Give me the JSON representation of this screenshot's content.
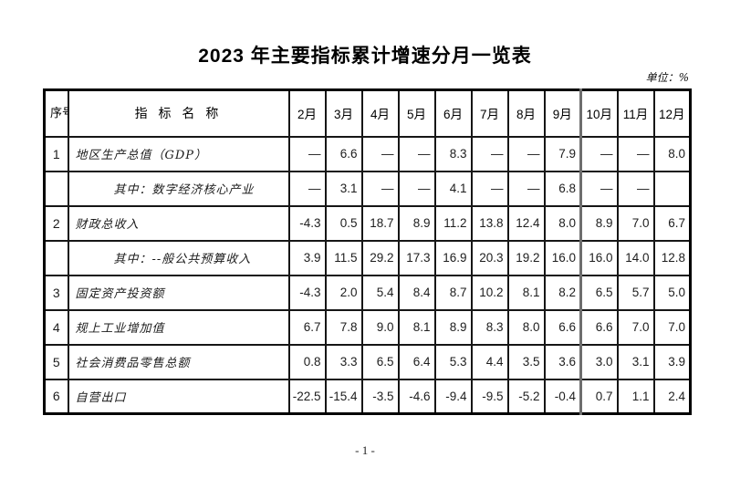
{
  "page": {
    "title": "2023 年主要指标累计增速分月一览表",
    "unit_label": "单位：%",
    "page_number": "- 1 -"
  },
  "colors": {
    "grid": "#161616",
    "outer_border": "#000000",
    "section_divider": "#6e6e6e"
  },
  "table": {
    "header": {
      "seq": "序号",
      "indicator": "指 标 名 称",
      "months": [
        "2月",
        "3月",
        "4月",
        "5月",
        "6月",
        "7月",
        "8月",
        "9月",
        "10月",
        "11月",
        "12月"
      ]
    },
    "rows": [
      {
        "seq": "1",
        "name": "地区生产总值（GDP）",
        "indent": false,
        "values": [
          "—",
          "6.6",
          "—",
          "—",
          "8.3",
          "—",
          "—",
          "7.9",
          "—",
          "—",
          "8.0"
        ]
      },
      {
        "seq": "",
        "name": "其中：数字经济核心产业",
        "indent": true,
        "values": [
          "—",
          "3.1",
          "—",
          "—",
          "4.1",
          "—",
          "—",
          "6.8",
          "—",
          "—",
          ""
        ]
      },
      {
        "seq": "2",
        "name": "财政总收入",
        "indent": false,
        "values": [
          "-4.3",
          "0.5",
          "18.7",
          "8.9",
          "11.2",
          "13.8",
          "12.4",
          "8.0",
          "8.9",
          "7.0",
          "6.7"
        ]
      },
      {
        "seq": "",
        "name": "其中：--般公共预算收入",
        "indent": true,
        "values": [
          "3.9",
          "11.5",
          "29.2",
          "17.3",
          "16.9",
          "20.3",
          "19.2",
          "16.0",
          "16.0",
          "14.0",
          "12.8"
        ]
      },
      {
        "seq": "3",
        "name": "固定资产投资额",
        "indent": false,
        "values": [
          "-4.3",
          "2.0",
          "5.4",
          "8.4",
          "8.7",
          "10.2",
          "8.1",
          "8.2",
          "6.5",
          "5.7",
          "5.0"
        ]
      },
      {
        "seq": "4",
        "name": "规上工业增加值",
        "indent": false,
        "values": [
          "6.7",
          "7.8",
          "9.0",
          "8.1",
          "8.9",
          "8.3",
          "8.0",
          "6.6",
          "6.6",
          "7.0",
          "7.0"
        ]
      },
      {
        "seq": "5",
        "name": "社会消费品零售总额",
        "indent": false,
        "values": [
          "0.8",
          "3.3",
          "6.5",
          "6.4",
          "5.3",
          "4.4",
          "3.5",
          "3.6",
          "3.0",
          "3.1",
          "3.9"
        ]
      },
      {
        "seq": "6",
        "name": "自营出口",
        "indent": false,
        "values": [
          "-22.5",
          "-15.4",
          "-3.5",
          "-4.6",
          "-9.4",
          "-9.5",
          "-5.2",
          "-0.4",
          "0.7",
          "1.1",
          "2.4"
        ]
      }
    ]
  }
}
